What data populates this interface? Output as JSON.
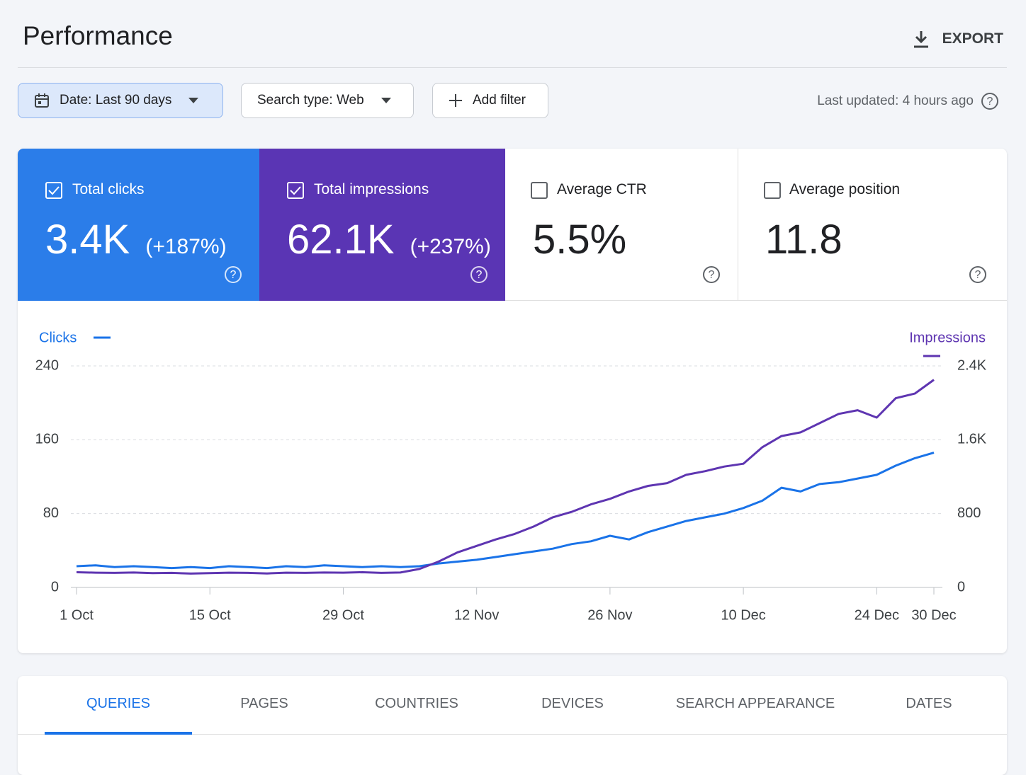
{
  "header": {
    "title": "Performance",
    "export": "EXPORT"
  },
  "filters": [
    "Date: Last 90 days",
    "Search type: Web",
    "Add filter"
  ],
  "last_updated": "Last updated: 4 hours ago",
  "metrics": [
    {
      "label": "Total clicks",
      "value": "3.4K",
      "change": "(+187%)"
    },
    {
      "label": "Total impressions",
      "value": "62.1K",
      "change": "(+237%)"
    },
    {
      "label": "Average CTR",
      "value": "5.5%"
    },
    {
      "label": "Average position",
      "value": "11.8"
    }
  ],
  "chart_data": {
    "type": "line",
    "categories": [
      "1 Oct",
      null,
      null,
      null,
      null,
      null,
      null,
      "15 Oct",
      null,
      null,
      null,
      null,
      null,
      null,
      "29 Oct",
      null,
      null,
      null,
      null,
      null,
      null,
      "12 Nov",
      null,
      null,
      null,
      null,
      null,
      null,
      "26 Nov",
      null,
      null,
      null,
      null,
      null,
      null,
      "10 Dec",
      null,
      null,
      null,
      null,
      null,
      null,
      "24 Dec",
      null,
      null,
      "30 Dec"
    ],
    "series": [
      {
        "name": "Clicks",
        "color": "#1a73e8",
        "axis": "y",
        "values": [
          23,
          24,
          22,
          23,
          22,
          21,
          22,
          21,
          23,
          22,
          21,
          23,
          22,
          24,
          23,
          22,
          23,
          22,
          23,
          26,
          28,
          30,
          33,
          36,
          39,
          42,
          47,
          50,
          56,
          52,
          60,
          66,
          72,
          76,
          80,
          86,
          94,
          108,
          104,
          112,
          114,
          118,
          122,
          132,
          140,
          146
        ]
      },
      {
        "name": "Impressions",
        "color": "#5e35b1",
        "axis": "y2",
        "values": [
          165,
          160,
          158,
          162,
          155,
          158,
          150,
          155,
          160,
          158,
          152,
          160,
          158,
          162,
          160,
          165,
          158,
          162,
          200,
          280,
          380,
          450,
          520,
          580,
          660,
          760,
          820,
          900,
          960,
          1040,
          1100,
          1130,
          1220,
          1260,
          1310,
          1340,
          1520,
          1640,
          1680,
          1780,
          1880,
          1920,
          1840,
          2050,
          2100,
          2250
        ]
      }
    ],
    "ylim": [
      0,
      240
    ],
    "yticks": [
      0,
      80,
      160,
      240
    ],
    "y2lim": [
      0,
      2400
    ],
    "y2ticks": [
      0,
      800,
      {
        "value": 1600,
        "label": "1.6K"
      },
      {
        "value": 2400,
        "label": "2.4K"
      }
    ],
    "grid": true
  },
  "tabs": [
    "QUERIES",
    "PAGES",
    "COUNTRIES",
    "DEVICES",
    "SEARCH APPEARANCE",
    "DATES"
  ]
}
